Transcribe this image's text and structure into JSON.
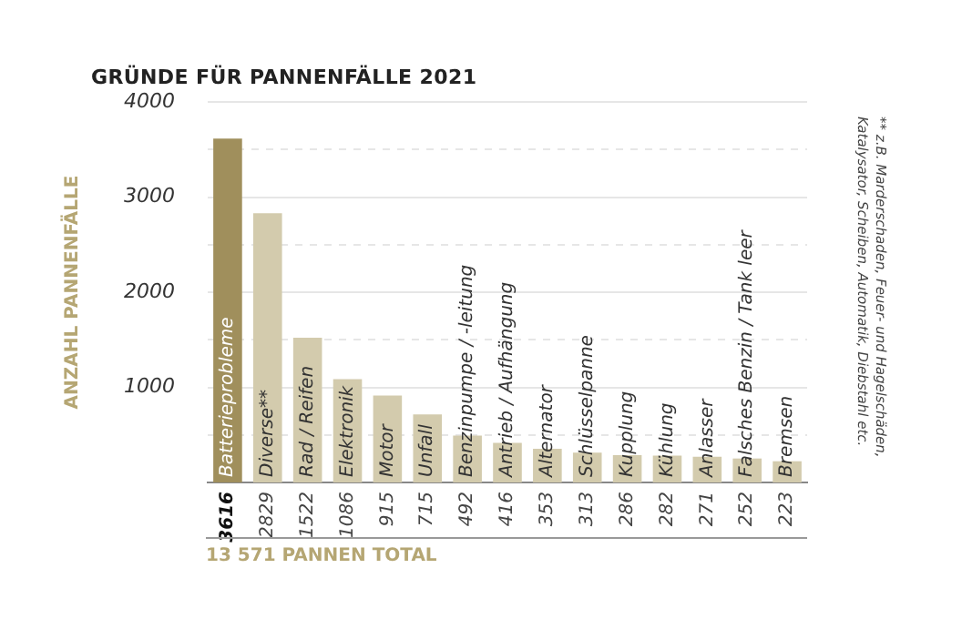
{
  "chart_data": {
    "type": "bar",
    "title": "GRÜNDE FÜR PANNENFÄLLE 2021",
    "ylabel": "ANZAHL PANNENFÄLLE",
    "categories": [
      "Batterieprobleme",
      "Diverse**",
      "Rad / Reifen",
      "Elektronik",
      "Motor",
      "Unfall",
      "Benzinpumpe / -leitung",
      "Antrieb / Aufhängung",
      "Alternator",
      "Schlüsselpanne",
      "Kupplung",
      "Kühlung",
      "Anlasser",
      "Falsches Benzin / Tank leer",
      "Bremsen"
    ],
    "values": [
      3616,
      2829,
      1522,
      1086,
      915,
      715,
      492,
      416,
      353,
      313,
      286,
      282,
      271,
      252,
      223
    ],
    "colors": [
      "#a08f5c",
      "#d3cbad",
      "#d3cbad",
      "#d3cbad",
      "#d3cbad",
      "#d3cbad",
      "#d3cbad",
      "#d3cbad",
      "#d3cbad",
      "#d3cbad",
      "#d3cbad",
      "#d3cbad",
      "#d3cbad",
      "#d3cbad",
      "#d3cbad"
    ],
    "ylim": [
      0,
      4000
    ],
    "yticks": [
      {
        "value": 500,
        "label": null
      },
      1000,
      {
        "value": 1500,
        "label": null
      },
      2000,
      {
        "value": 2500,
        "label": null
      },
      3000,
      {
        "value": 3500,
        "label": null
      },
      4000
    ],
    "grid": "y",
    "legend": false,
    "data_labels": true,
    "annotations": [
      "** z.B. Marderschaden, Feuer- und Hagelschäden, Katalysator, Scheiben, Automatik, Diebstahl etc.",
      "13 571 PANNEN TOTAL"
    ]
  }
}
